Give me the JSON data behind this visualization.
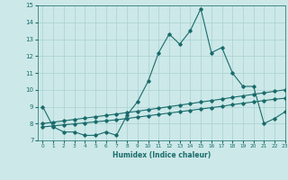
{
  "xlabel": "Humidex (Indice chaleur)",
  "xlim": [
    -0.5,
    23
  ],
  "ylim": [
    7,
    15
  ],
  "xticks": [
    0,
    1,
    2,
    3,
    4,
    5,
    6,
    7,
    8,
    9,
    10,
    11,
    12,
    13,
    14,
    15,
    16,
    17,
    18,
    19,
    20,
    21,
    22,
    23
  ],
  "yticks": [
    7,
    8,
    9,
    10,
    11,
    12,
    13,
    14,
    15
  ],
  "bg_color": "#cce8e8",
  "grid_color": "#aad0d0",
  "line_color": "#1a6b6b",
  "line1": [
    9.0,
    7.8,
    7.5,
    7.5,
    7.3,
    7.3,
    7.5,
    7.3,
    8.5,
    9.3,
    10.5,
    12.2,
    13.3,
    12.7,
    13.5,
    14.8,
    12.2,
    12.5,
    11.0,
    10.2,
    10.2,
    8.0,
    8.3,
    8.7
  ],
  "line2": [
    8.0,
    8.08,
    8.16,
    8.24,
    8.32,
    8.4,
    8.48,
    8.56,
    8.65,
    8.73,
    8.82,
    8.91,
    9.0,
    9.09,
    9.18,
    9.27,
    9.36,
    9.45,
    9.55,
    9.64,
    9.73,
    9.82,
    9.91,
    10.0
  ],
  "line3": [
    7.8,
    7.86,
    7.92,
    7.98,
    8.04,
    8.1,
    8.16,
    8.22,
    8.3,
    8.38,
    8.46,
    8.54,
    8.62,
    8.7,
    8.78,
    8.86,
    8.94,
    9.02,
    9.12,
    9.2,
    9.28,
    9.36,
    9.44,
    9.5
  ]
}
